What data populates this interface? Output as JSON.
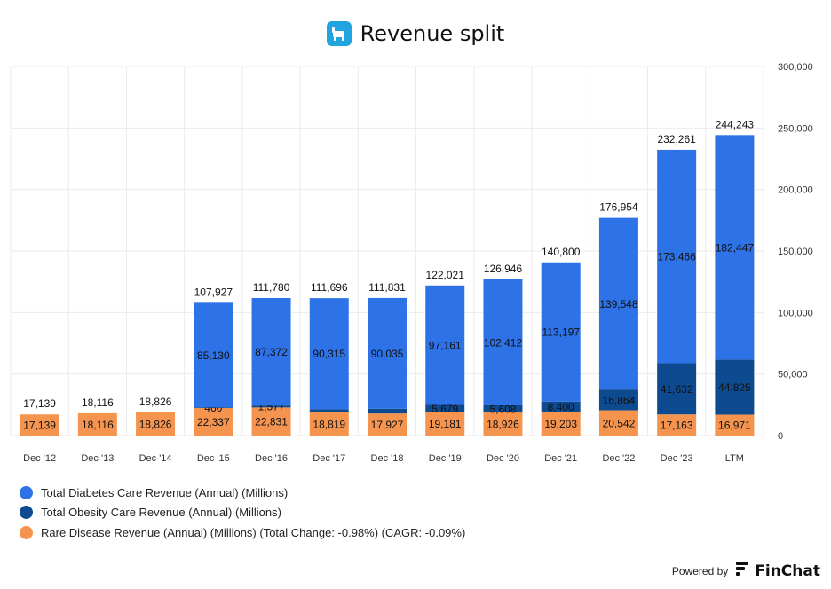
{
  "header": {
    "title": "Revenue split"
  },
  "colors": {
    "diabetes": "#2e72e8",
    "obesity": "#0d4a8f",
    "rare": "#f5944e",
    "grid": "#ebebeb"
  },
  "legend": {
    "items": [
      {
        "label": "Total Diabetes Care Revenue (Annual) (Millions)",
        "color": "#2e72e8"
      },
      {
        "label": "Total Obesity Care Revenue (Annual) (Millions)",
        "color": "#0d4a8f"
      },
      {
        "label": "Rare Disease Revenue (Annual) (Millions) (Total Change: -0.98%) (CAGR: -0.09%)",
        "color": "#f5944e"
      }
    ]
  },
  "footer": {
    "powered_by": "Powered by",
    "brand": "FinChat"
  },
  "chart_data": {
    "type": "bar",
    "stacked": true,
    "title": "Revenue split",
    "categories": [
      "Dec '12",
      "Dec '13",
      "Dec '14",
      "Dec '15",
      "Dec '16",
      "Dec '17",
      "Dec '18",
      "Dec '19",
      "Dec '20",
      "Dec '21",
      "Dec '22",
      "Dec '23",
      "LTM"
    ],
    "series": [
      {
        "name": "Rare Disease Revenue (Annual) (Millions)",
        "key": "rare",
        "values": [
          17139,
          18116,
          18826,
          22337,
          22831,
          18819,
          17927,
          19181,
          18926,
          19203,
          20542,
          17163,
          16971
        ],
        "labels": [
          "17,139",
          "18,116",
          "18,826",
          "22,337",
          "22,831",
          "18,819",
          "17,927",
          "19,181",
          "18,926",
          "19,203",
          "20,542",
          "17,163",
          "16,971"
        ]
      },
      {
        "name": "Total Obesity Care Revenue (Annual) (Millions)",
        "key": "obesity",
        "values": [
          0,
          0,
          0,
          460,
          1577,
          2562,
          3869,
          5679,
          5608,
          8400,
          16864,
          41632,
          44825
        ],
        "labels": [
          "",
          "",
          "",
          "460",
          "1,577",
          "",
          "",
          "5,679",
          "5,608",
          "8,400",
          "16,864",
          "41,632",
          "44,825"
        ]
      },
      {
        "name": "Total Diabetes Care Revenue (Annual) (Millions)",
        "key": "diabetes",
        "values": [
          0,
          0,
          0,
          85130,
          87372,
          90315,
          90035,
          97161,
          102412,
          113197,
          139548,
          173466,
          182447
        ],
        "labels": [
          "",
          "",
          "",
          "85,130",
          "87,372",
          "90,315",
          "90,035",
          "97,161",
          "102,412",
          "113,197",
          "139,548",
          "173,466",
          "182,447"
        ]
      }
    ],
    "totals": [
      "17,139",
      "18,116",
      "18,826",
      "107,927",
      "111,780",
      "111,696",
      "111,831",
      "122,021",
      "126,946",
      "140,800",
      "176,954",
      "232,261",
      "244,243"
    ],
    "y_ticks": [
      "0",
      "50,000",
      "100,000",
      "150,000",
      "200,000",
      "250,000",
      "300,000"
    ],
    "ylim": [
      0,
      300000
    ],
    "y_axis_position": "right",
    "grid": true
  }
}
